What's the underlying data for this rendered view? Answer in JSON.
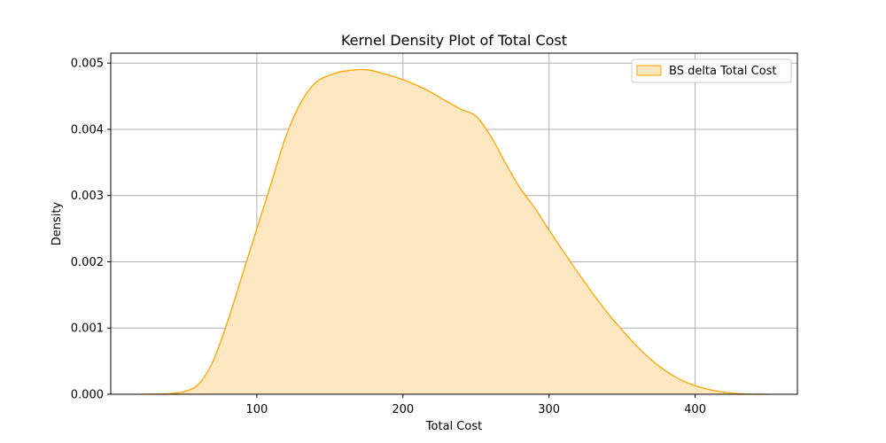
{
  "chart_data": {
    "type": "area",
    "title": "Kernel Density Plot of Total Cost",
    "xlabel": "Total Cost",
    "ylabel": "Density",
    "xlim": [
      0,
      470
    ],
    "ylim": [
      0,
      0.00515
    ],
    "xticks": [
      100,
      200,
      300,
      400
    ],
    "yticks": [
      0.0,
      0.001,
      0.002,
      0.003,
      0.004,
      0.005
    ],
    "ytick_labels": [
      "0.000",
      "0.001",
      "0.002",
      "0.003",
      "0.004",
      "0.005"
    ],
    "grid": true,
    "legend_position": "top-right",
    "series": [
      {
        "name": "BS delta Total Cost",
        "color": "#ffa500",
        "fill_color": "#fde7c0",
        "x": [
          20,
          40,
          50,
          60,
          70,
          80,
          90,
          100,
          110,
          120,
          130,
          140,
          150,
          160,
          175,
          190,
          200,
          210,
          220,
          230,
          240,
          250,
          260,
          270,
          280,
          290,
          300,
          310,
          320,
          330,
          340,
          350,
          360,
          370,
          380,
          390,
          400,
          410,
          420,
          430,
          440,
          450
        ],
        "y": [
          0.0,
          1e-05,
          4e-05,
          0.00015,
          0.0005,
          0.0011,
          0.0018,
          0.0025,
          0.0032,
          0.0039,
          0.0044,
          0.0047,
          0.00482,
          0.00488,
          0.0049,
          0.00482,
          0.00475,
          0.00466,
          0.00455,
          0.00442,
          0.0043,
          0.0042,
          0.0039,
          0.0035,
          0.00312,
          0.00282,
          0.00248,
          0.00215,
          0.00183,
          0.00152,
          0.00123,
          0.00097,
          0.00073,
          0.00052,
          0.00035,
          0.00022,
          0.00013,
          7e-05,
          3e-05,
          1e-05,
          0.0,
          0.0
        ]
      }
    ]
  }
}
